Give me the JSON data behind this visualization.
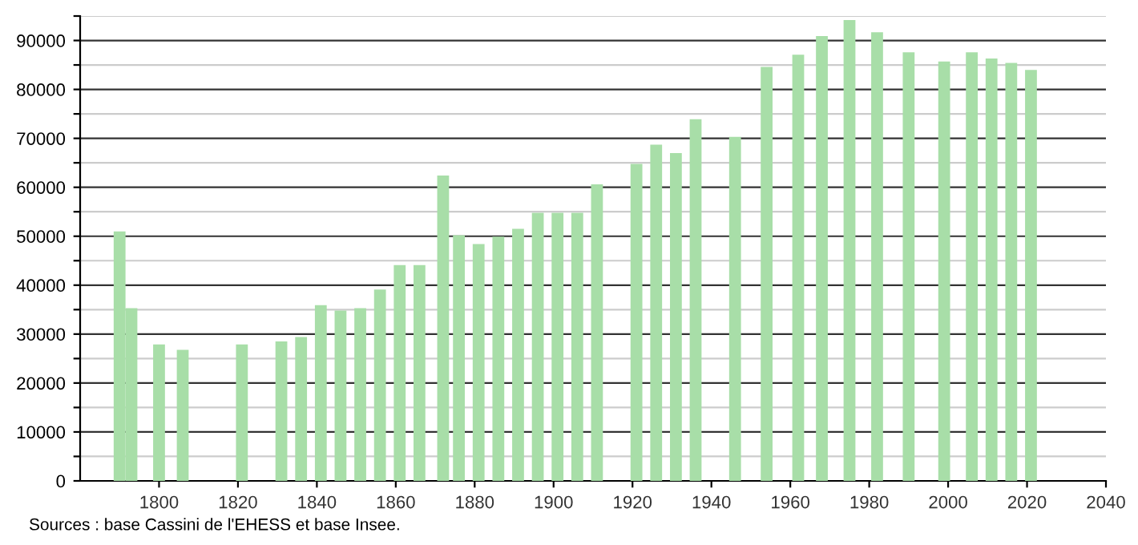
{
  "chart_data": {
    "type": "bar",
    "x": [
      1790,
      1793,
      1800,
      1806,
      1821,
      1831,
      1836,
      1841,
      1846,
      1851,
      1856,
      1861,
      1866,
      1872,
      1876,
      1881,
      1886,
      1891,
      1896,
      1901,
      1906,
      1911,
      1921,
      1926,
      1931,
      1936,
      1946,
      1954,
      1962,
      1968,
      1975,
      1982,
      1990,
      1999,
      2006,
      2011,
      2016,
      2021
    ],
    "values": [
      51000,
      35300,
      27900,
      26800,
      27900,
      28500,
      29400,
      35900,
      34800,
      35300,
      39100,
      44100,
      44100,
      62400,
      50200,
      48400,
      49900,
      51500,
      54800,
      54800,
      54800,
      60600,
      64800,
      68700,
      67000,
      73900,
      70300,
      84600,
      87100,
      90900,
      94200,
      91700,
      87600,
      85700,
      87600,
      86300,
      85400,
      84000
    ],
    "color": "#a8dea8",
    "xlim": [
      1780,
      2040
    ],
    "xticks": [
      1800,
      1820,
      1840,
      1860,
      1880,
      1900,
      1920,
      1940,
      1960,
      1980,
      2000,
      2020,
      2040
    ],
    "ylim": [
      0,
      95000
    ],
    "yticks": [
      0,
      {
        "value": 5000,
        "label": null
      },
      10000,
      {
        "value": 15000,
        "label": null
      },
      20000,
      {
        "value": 25000,
        "label": null
      },
      30000,
      {
        "value": 35000,
        "label": null
      },
      40000,
      {
        "value": 45000,
        "label": null
      },
      50000,
      {
        "value": 55000,
        "label": null
      },
      60000,
      {
        "value": 65000,
        "label": null
      },
      70000,
      {
        "value": 75000,
        "label": null
      },
      80000,
      {
        "value": 85000,
        "label": null
      },
      90000,
      {
        "value": 95000,
        "label": null
      }
    ],
    "grid": "y",
    "annotations": [
      "Sources : base Cassini de l'EHESS et base Insee."
    ]
  }
}
